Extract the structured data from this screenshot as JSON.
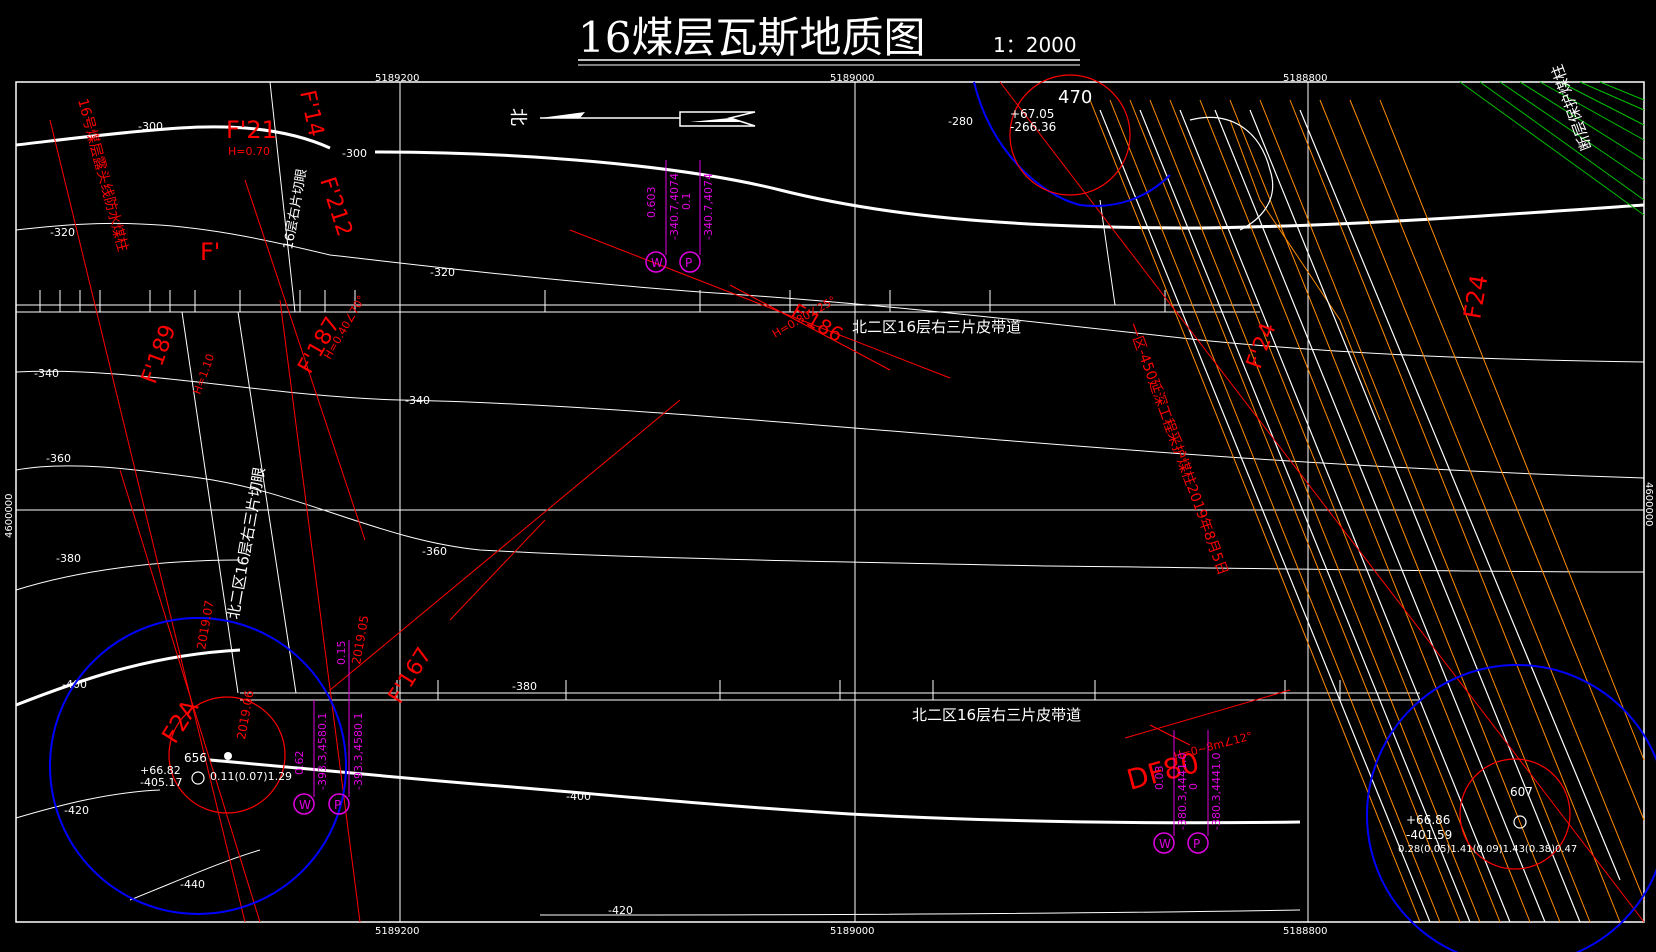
{
  "title": {
    "main": "16煤层瓦斯地质图",
    "scale": "1：2000"
  },
  "grid": {
    "x_labels": [
      "5189200",
      "5189000",
      "5188800"
    ],
    "y_label": "4600000"
  },
  "direction": {
    "north": "北"
  },
  "contours": [
    "-280",
    "-300",
    "-300",
    "-320",
    "-320",
    "-340",
    "-340",
    "-360",
    "-360",
    "-380",
    "-380",
    "-400",
    "-400",
    "-420",
    "-420",
    "-440"
  ],
  "roadways": {
    "upper": "北二区16层右三片皮带道",
    "lower": "北二区16层右三片皮带道",
    "cut": "北二区16层右三片切眼",
    "left_cut_partial": "16层右片切眼"
  },
  "faults": [
    "F'21",
    "F'14",
    "F'212",
    "F'",
    "F'189",
    "F'187",
    "F'186",
    "F'167",
    "F'24",
    "F2A",
    "F24",
    "DF80"
  ],
  "fault_params": {
    "f21": "H=0.70",
    "f189": "H=1.10",
    "f187": "H=0.40∠70°",
    "f186": "H=0.80∠25°",
    "df80": "H=0~8m∠12°"
  },
  "sample_points": [
    {
      "w": "W",
      "p": "P",
      "w_val": "0.603",
      "p_val": "0.1",
      "w_sub": "-340.7,4074",
      "p_sub": "-340.7,4074"
    },
    {
      "w": "W",
      "p": "P",
      "w_val": "0.62",
      "p_val": "0.15",
      "w_sub": "-393.3,4580.1",
      "p_sub": "-393.3,4580.1"
    },
    {
      "w": "W",
      "p": "P",
      "w_val": "0.03",
      "p_val": "0",
      "w_sub": "-380.3,4441.0",
      "p_sub": "-380.3,4441.0"
    }
  ],
  "boreholes": [
    {
      "num": "656",
      "elev": "+66.82",
      "depth": "-405.17",
      "data": "0.11(0.07)1.29"
    },
    {
      "num": "470",
      "elev": "+67.05",
      "depth": "-266.36",
      "data": ""
    },
    {
      "num": "607",
      "elev": "+66.86",
      "depth": "-401.59",
      "data": "0.28(0.05)1.41(0.09)1.43(0.38)0.47"
    }
  ],
  "dates": [
    "2019.07",
    "2019.05",
    "2019.06"
  ],
  "notes": {
    "left_boundary": "16号煤层露头线防水煤柱",
    "mid_line": "一区-450延深工程采护煤柱2019年8月5日",
    "right_green": "断层保护煤柱"
  },
  "colors": {
    "background": "#000000",
    "contour": "#ffffff",
    "grid": "#ffffff",
    "fault": "#ff0000",
    "influence": "#0000ff",
    "sample": "#e000e0",
    "workings": "#ff8c00",
    "protect": "#00c000"
  }
}
